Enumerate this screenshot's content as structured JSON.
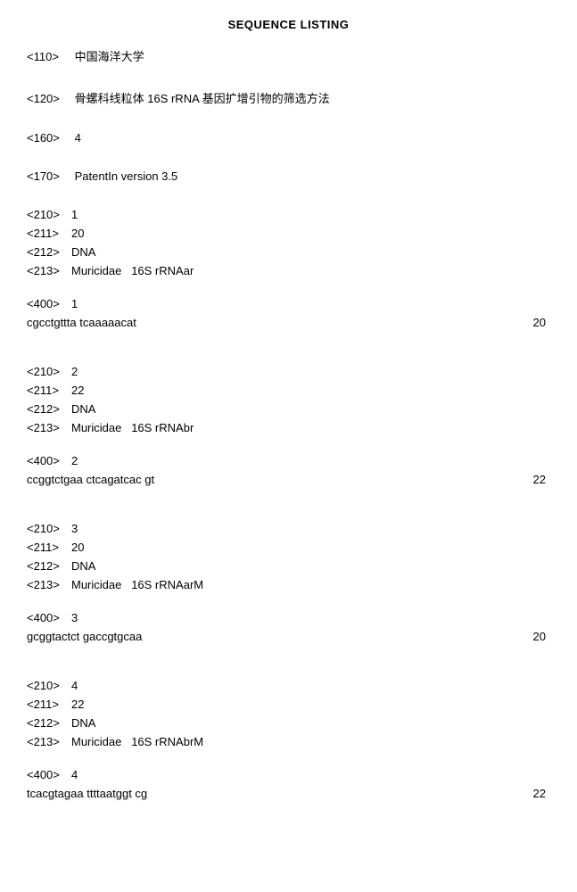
{
  "title": "SEQUENCE LISTING",
  "header": {
    "tag110": "<110>",
    "val110": "中国海洋大学",
    "tag120": "<120>",
    "val120": "骨螺科线粒体 16S rRNA 基因扩增引物的筛选方法",
    "tag160": "<160>",
    "val160": "4",
    "tag170": "<170>",
    "val170": "PatentIn version 3.5"
  },
  "sequences": [
    {
      "tag210": "<210>",
      "val210": "1",
      "tag211": "<211>",
      "val211": "20",
      "tag212": "<212>",
      "val212": "DNA",
      "tag213": "<213>",
      "val213": "Muricidae   16S rRNAar",
      "tag400": "<400>",
      "val400": "1",
      "seq": "cgcctgttta tcaaaaacat",
      "len": "20"
    },
    {
      "tag210": "<210>",
      "val210": "2",
      "tag211": "<211>",
      "val211": "22",
      "tag212": "<212>",
      "val212": "DNA",
      "tag213": "<213>",
      "val213": "Muricidae   16S rRNAbr",
      "tag400": "<400>",
      "val400": "2",
      "seq": "ccggtctgaa ctcagatcac gt",
      "len": "22"
    },
    {
      "tag210": "<210>",
      "val210": "3",
      "tag211": "<211>",
      "val211": "20",
      "tag212": "<212>",
      "val212": "DNA",
      "tag213": "<213>",
      "val213": "Muricidae   16S rRNAarM",
      "tag400": "<400>",
      "val400": "3",
      "seq": "gcggtactct gaccgtgcaa",
      "len": "20"
    },
    {
      "tag210": "<210>",
      "val210": "4",
      "tag211": "<211>",
      "val211": "22",
      "tag212": "<212>",
      "val212": "DNA",
      "tag213": "<213>",
      "val213": "Muricidae   16S rRNAbrM",
      "tag400": "<400>",
      "val400": "4",
      "seq": "tcacgtagaa ttttaatggt cg",
      "len": "22"
    }
  ]
}
